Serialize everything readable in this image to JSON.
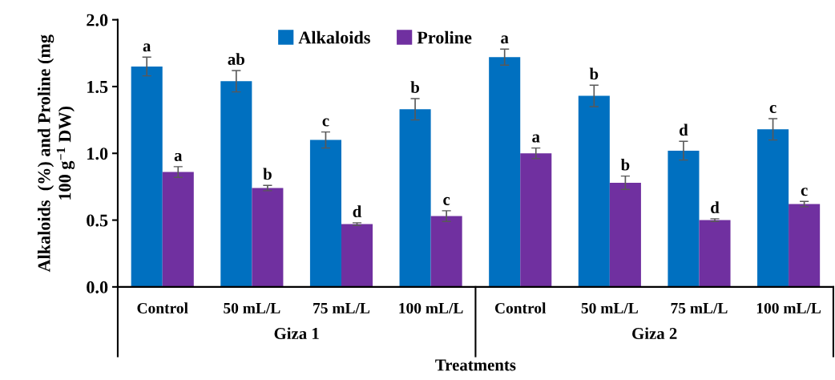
{
  "chart_data": {
    "type": "bar",
    "ylabel": "Alkaloids  (%) and Proline (mg 100 g$^{−1}$ DW)",
    "xlabel": "Treatments",
    "categories": [
      "Control",
      "50 mL/L",
      "75 mL/L",
      "100 mL/L",
      "Control",
      "50 mL/L",
      "75 mL/L",
      "100 mL/L"
    ],
    "series": [
      {
        "name": "Alkaloids",
        "color": "#0070c0",
        "values": [
          1.65,
          1.54,
          1.1,
          1.33,
          1.72,
          1.43,
          1.02,
          1.18
        ],
        "errors": [
          0.07,
          0.08,
          0.06,
          0.08,
          0.06,
          0.08,
          0.07,
          0.08
        ],
        "value_labels": [
          "a",
          "ab",
          "c",
          "b",
          "a",
          "b",
          "d",
          "c"
        ]
      },
      {
        "name": "Proline",
        "color": "#7030a0",
        "values": [
          0.86,
          0.74,
          0.47,
          0.53,
          1.0,
          0.78,
          0.5,
          0.62
        ],
        "errors": [
          0.04,
          0.02,
          0.01,
          0.04,
          0.04,
          0.05,
          0.01,
          0.02
        ],
        "value_labels": [
          "a",
          "b",
          "d",
          "c",
          "a",
          "b",
          "d",
          "c"
        ]
      }
    ],
    "annotations": [
      "Giza 1",
      "Giza 2"
    ],
    "ylim": [
      0,
      2.0
    ],
    "yticks": [
      {
        "value": 0,
        "label": "0.0"
      },
      {
        "value": 0.5,
        "label": "0.5"
      },
      {
        "value": 1.0,
        "label": "1.0"
      },
      {
        "value": 1.5,
        "label": "1.5"
      },
      {
        "value": 2.0,
        "label": "2.0"
      }
    ],
    "legend": "top",
    "grid": false
  }
}
